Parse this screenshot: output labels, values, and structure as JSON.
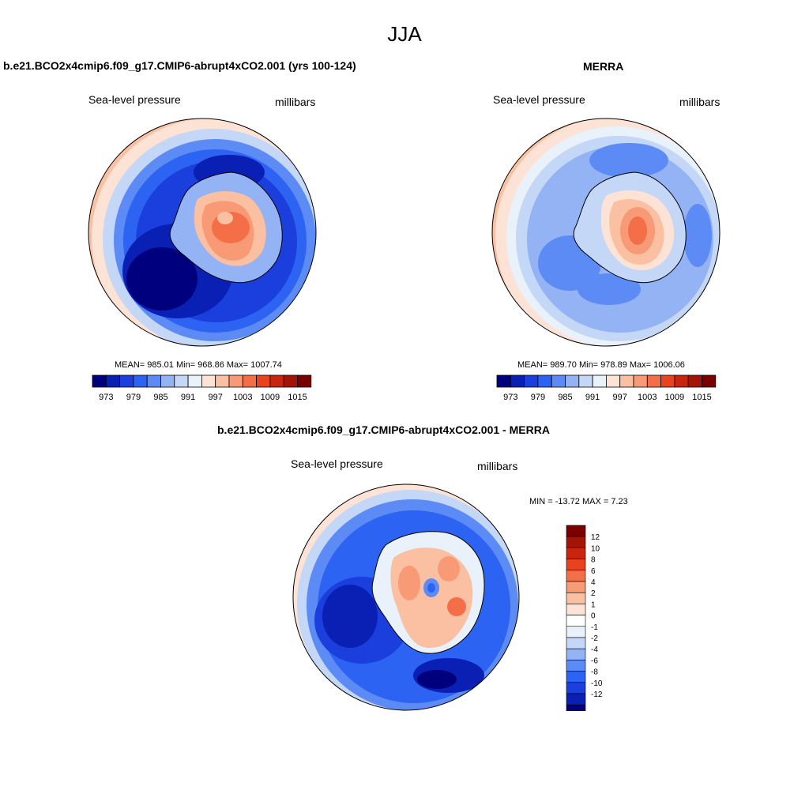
{
  "page": {
    "title": "JJA"
  },
  "panels": [
    {
      "id": "model",
      "title": "b.e21.BCO2x4cmip6.f09_g17.CMIP6-abrupt4xCO2.001 (yrs 100-124)",
      "field_label": "Sea-level pressure",
      "units": "millibars",
      "stats": "MEAN= 985.01  Min= 968.86  Max= 1007.74"
    },
    {
      "id": "merra",
      "title": "MERRA",
      "field_label": "Sea-level pressure",
      "units": "millibars",
      "stats": "MEAN= 989.70  Min= 978.89  Max= 1006.06"
    },
    {
      "id": "diff",
      "title": "b.e21.BCO2x4cmip6.f09_g17.CMIP6-abrupt4xCO2.001 - MERRA",
      "field_label": "Sea-level pressure",
      "units": "millibars",
      "stats": "MIN = -13.72 MAX =   7.23"
    }
  ],
  "colorbar_abs": {
    "colors": [
      "#00007f",
      "#0a1fb4",
      "#1a3fdc",
      "#2d63f2",
      "#5d8bf5",
      "#93b3f5",
      "#c4d7f7",
      "#e9f1fb",
      "#fde3d6",
      "#fbbfa2",
      "#f89a75",
      "#f46f47",
      "#e8431e",
      "#c9250e",
      "#a31407",
      "#7a0000"
    ],
    "tick_labels": [
      "973",
      "979",
      "985",
      "991",
      "997",
      "1003",
      "1009",
      "1015"
    ]
  },
  "colorbar_diff": {
    "colors": [
      "#7a0000",
      "#a31407",
      "#c9250e",
      "#e8431e",
      "#f46f47",
      "#f89a75",
      "#fbbfa2",
      "#fde3d6",
      "#ffffff",
      "#e9f1fb",
      "#c4d7f7",
      "#93b3f5",
      "#5d8bf5",
      "#2d63f2",
      "#1a3fdc",
      "#0a1fb4",
      "#00007f"
    ],
    "tick_labels": [
      "12",
      "10",
      "8",
      "6",
      "4",
      "2",
      "1",
      "0",
      "-1",
      "-2",
      "-4",
      "-6",
      "-8",
      "-10",
      "-12"
    ]
  }
}
